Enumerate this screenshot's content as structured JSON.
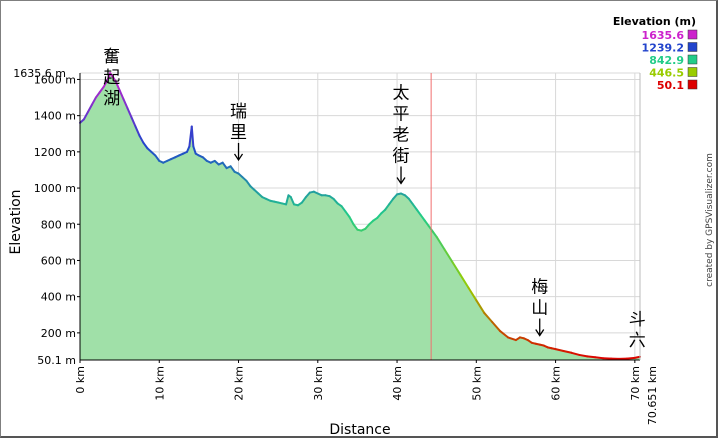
{
  "chart_data": {
    "type": "area",
    "xlabel": "Distance",
    "ylabel": "Elevation",
    "x_unit": "km",
    "y_unit": "m",
    "xlim": [
      0,
      70.651
    ],
    "ylim": [
      50.1,
      1635.6
    ],
    "x_ticks": [
      0,
      10,
      20,
      30,
      40,
      50,
      60,
      70
    ],
    "x_tick_labels": [
      "0 km",
      "10 km",
      "20 km",
      "30 km",
      "40 km",
      "50 km",
      "60 km",
      "70 km"
    ],
    "x_end_label": "70.651 km",
    "y_ticks": [
      200,
      400,
      600,
      800,
      1000,
      1200,
      1400,
      1600
    ],
    "y_tick_labels": [
      "200 m",
      "400 m",
      "600 m",
      "800 m",
      "1000 m",
      "1200 m",
      "1400 m",
      "1600 m"
    ],
    "y_min_label": "50.1 m",
    "y_max_label": "1635.6 m",
    "grid": true,
    "fill_color": "#a0e0a8",
    "marker_km": 44.3,
    "marker_color": "#f07070",
    "legend": {
      "title": "Elevation (m)",
      "placement": "top-right",
      "entries": [
        {
          "value": "1635.6",
          "color": "#cc22cc"
        },
        {
          "value": "1239.2",
          "color": "#2244cc"
        },
        {
          "value": "842.9",
          "color": "#22cc88"
        },
        {
          "value": "446.5",
          "color": "#99cc00"
        },
        {
          "value": "50.1",
          "color": "#dd0000"
        }
      ]
    },
    "annotations": [
      {
        "text": "奮起湖",
        "km": 4.0,
        "elev": 1635.6,
        "arrow": false
      },
      {
        "text": "瑞里",
        "km": 20.0,
        "elev": 1100,
        "arrow": true
      },
      {
        "text": "太平老街",
        "km": 40.5,
        "elev": 970,
        "arrow": true
      },
      {
        "text": "梅山",
        "km": 58.0,
        "elev": 130,
        "arrow": true
      },
      {
        "text": "斗六",
        "km": 70.3,
        "elev": 60,
        "arrow": false
      }
    ],
    "series": [
      {
        "x": [
          0,
          0.5,
          1,
          1.5,
          2,
          2.5,
          3,
          3.5,
          3.8,
          4.2,
          4.5,
          5,
          5.5,
          6,
          6.5,
          7,
          7.5,
          8,
          8.5,
          9,
          9.5,
          10,
          10.5,
          11,
          11.5,
          12,
          12.5,
          13,
          13.5,
          13.8,
          14.1,
          14.3,
          14.6,
          15,
          15.5,
          16,
          16.5,
          17,
          17.5,
          18,
          18.5,
          19,
          19.5,
          20,
          20.5,
          21,
          21.5,
          22,
          22.5,
          23,
          23.5,
          24,
          24.5,
          25,
          25.5,
          26,
          26.3,
          26.6,
          27,
          27.5,
          28,
          28.5,
          29,
          29.5,
          30,
          30.5,
          31,
          31.5,
          32,
          32.5,
          33,
          33.5,
          34,
          34.5,
          35,
          35.5,
          36,
          36.5,
          37,
          37.5,
          38,
          38.5,
          39,
          39.5,
          40,
          40.5,
          41,
          41.5,
          42,
          42.5,
          43,
          43.5,
          44,
          44.5,
          45,
          46,
          47,
          48,
          49,
          50,
          51,
          52,
          53,
          54,
          55,
          55.5,
          56,
          56.5,
          57,
          57.5,
          58,
          58.5,
          59,
          59.5,
          60,
          61,
          62,
          63,
          64,
          65,
          66,
          67,
          68,
          69,
          70,
          70.651
        ],
        "values": [
          1360,
          1380,
          1420,
          1460,
          1500,
          1530,
          1560,
          1600,
          1635,
          1610,
          1590,
          1540,
          1490,
          1440,
          1390,
          1340,
          1290,
          1250,
          1220,
          1200,
          1180,
          1150,
          1140,
          1150,
          1160,
          1170,
          1180,
          1190,
          1200,
          1230,
          1340,
          1230,
          1190,
          1180,
          1170,
          1150,
          1140,
          1150,
          1130,
          1140,
          1110,
          1120,
          1090,
          1080,
          1060,
          1040,
          1010,
          990,
          970,
          950,
          940,
          930,
          925,
          920,
          915,
          910,
          960,
          950,
          910,
          905,
          920,
          950,
          975,
          980,
          970,
          960,
          960,
          955,
          940,
          915,
          900,
          870,
          840,
          800,
          770,
          765,
          775,
          800,
          820,
          835,
          860,
          880,
          910,
          940,
          965,
          970,
          960,
          940,
          910,
          880,
          850,
          820,
          790,
          760,
          730,
          660,
          590,
          520,
          450,
          380,
          310,
          260,
          210,
          175,
          160,
          175,
          170,
          160,
          145,
          140,
          135,
          130,
          120,
          115,
          110,
          100,
          90,
          78,
          70,
          65,
          60,
          58,
          56,
          58,
          62,
          68
        ]
      }
    ]
  }
}
